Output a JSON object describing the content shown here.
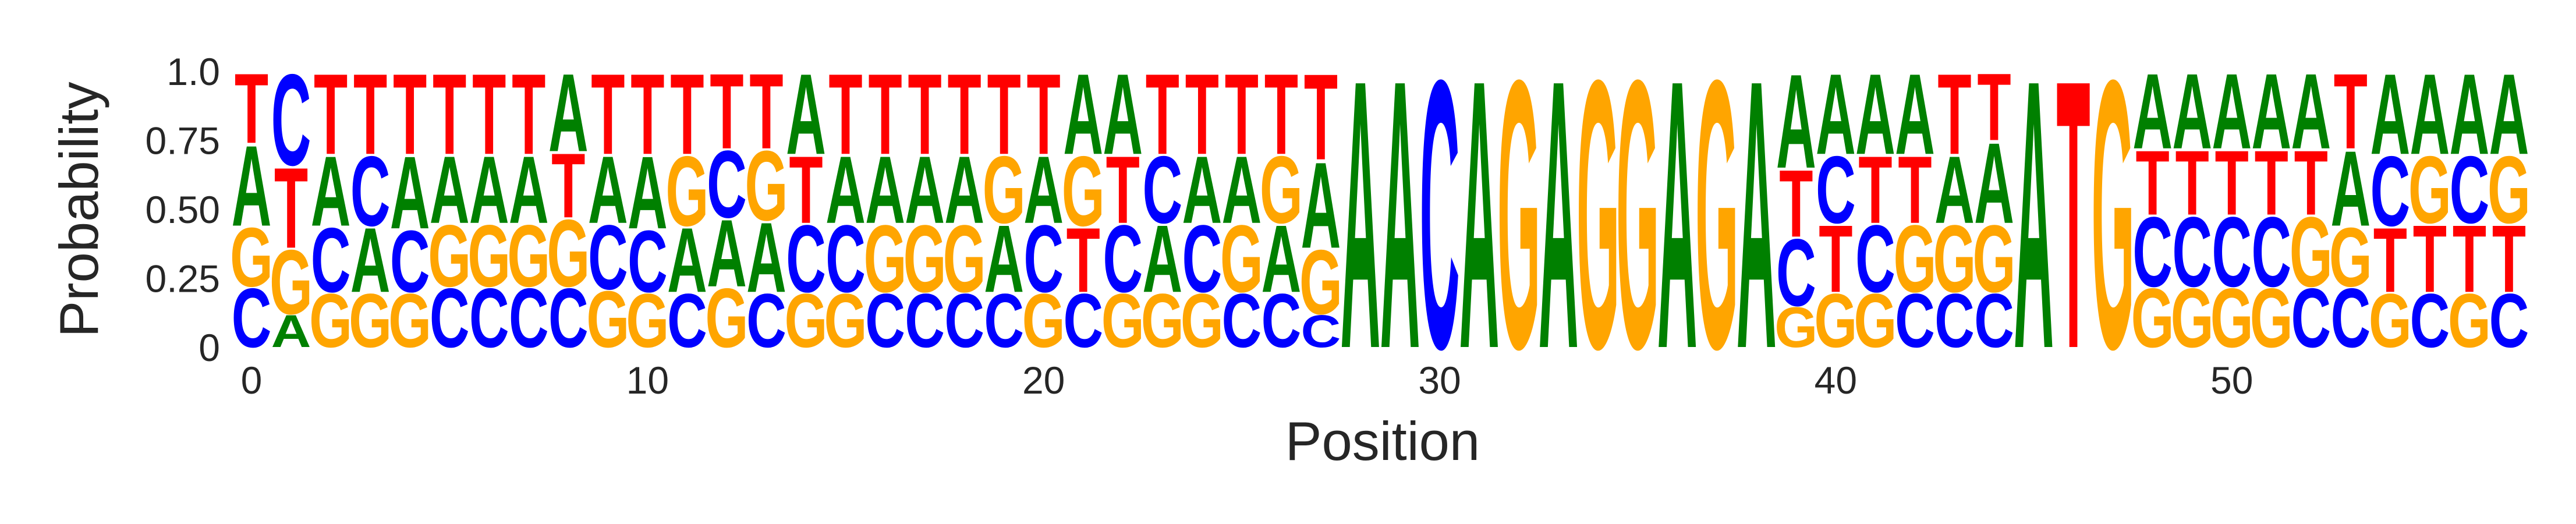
{
  "chart_data": {
    "type": "sequence-logo",
    "title": "",
    "xlabel": "Position",
    "ylabel": "Probability",
    "ylim": [
      0,
      1
    ],
    "yticks": [
      "0",
      "0.25",
      "0.50",
      "0.75",
      "1.0"
    ],
    "yticks_values": [
      0,
      0.25,
      0.5,
      0.75,
      1.0
    ],
    "xticks": [
      "0",
      "10",
      "20",
      "30",
      "40",
      "50"
    ],
    "xticks_values": [
      0,
      10,
      20,
      30,
      40,
      50
    ],
    "xlim": [
      -0.5,
      58.5
    ],
    "grid": false,
    "legend": "none",
    "letter_colors": {
      "A": "#008000",
      "C": "#0000ff",
      "G": "#ffa500",
      "T": "#ff0000"
    },
    "positions": [
      {
        "pos": 0,
        "probs": {
          "C": 0.22,
          "G": 0.22,
          "A": 0.3,
          "T": 0.26
        }
      },
      {
        "pos": 1,
        "probs": {
          "A": 0.12,
          "G": 0.24,
          "T": 0.3,
          "C": 0.34
        }
      },
      {
        "pos": 2,
        "probs": {
          "G": 0.2,
          "C": 0.24,
          "A": 0.26,
          "T": 0.3
        }
      },
      {
        "pos": 3,
        "probs": {
          "G": 0.2,
          "A": 0.24,
          "C": 0.26,
          "T": 0.3
        }
      },
      {
        "pos": 4,
        "probs": {
          "G": 0.2,
          "C": 0.23,
          "A": 0.27,
          "T": 0.3
        }
      },
      {
        "pos": 5,
        "probs": {
          "C": 0.22,
          "G": 0.23,
          "A": 0.25,
          "T": 0.3
        }
      },
      {
        "pos": 6,
        "probs": {
          "C": 0.22,
          "G": 0.23,
          "A": 0.25,
          "T": 0.3
        }
      },
      {
        "pos": 7,
        "probs": {
          "C": 0.22,
          "G": 0.23,
          "A": 0.25,
          "T": 0.3
        }
      },
      {
        "pos": 8,
        "probs": {
          "C": 0.22,
          "C2": 0,
          "G": 0.25,
          "T": 0.24,
          "A": 0.29
        }
      },
      {
        "pos": 9,
        "probs": {
          "G": 0.21,
          "C": 0.24,
          "A": 0.25,
          "T": 0.3
        }
      },
      {
        "pos": 10,
        "probs": {
          "G": 0.2,
          "C": 0.23,
          "A": 0.27,
          "T": 0.3
        }
      },
      {
        "pos": 11,
        "probs": {
          "C": 0.2,
          "A": 0.24,
          "G": 0.26,
          "T": 0.3
        }
      },
      {
        "pos": 12,
        "probs": {
          "G": 0.22,
          "A": 0.25,
          "C": 0.25,
          "T": 0.28
        }
      },
      {
        "pos": 13,
        "probs": {
          "C": 0.2,
          "A": 0.26,
          "G": 0.26,
          "T": 0.28
        }
      },
      {
        "pos": 14,
        "probs": {
          "G": 0.2,
          "C": 0.25,
          "T": 0.25,
          "A": 0.3
        }
      },
      {
        "pos": 15,
        "probs": {
          "G": 0.2,
          "C": 0.25,
          "A": 0.25,
          "T": 0.3
        }
      },
      {
        "pos": 16,
        "probs": {
          "C": 0.2,
          "G": 0.25,
          "A": 0.25,
          "T": 0.3
        }
      },
      {
        "pos": 17,
        "probs": {
          "C": 0.2,
          "G": 0.25,
          "A": 0.25,
          "T": 0.3
        }
      },
      {
        "pos": 18,
        "probs": {
          "C": 0.2,
          "G": 0.25,
          "A": 0.25,
          "T": 0.3
        }
      },
      {
        "pos": 19,
        "probs": {
          "C": 0.2,
          "A": 0.25,
          "G": 0.25,
          "T": 0.3
        }
      },
      {
        "pos": 20,
        "probs": {
          "G": 0.2,
          "C": 0.25,
          "A": 0.25,
          "T": 0.3
        }
      },
      {
        "pos": 21,
        "probs": {
          "C": 0.2,
          "T": 0.24,
          "G": 0.26,
          "A": 0.3
        }
      },
      {
        "pos": 22,
        "probs": {
          "G": 0.2,
          "C": 0.25,
          "T": 0.25,
          "A": 0.3
        }
      },
      {
        "pos": 23,
        "probs": {
          "G": 0.2,
          "A": 0.25,
          "C": 0.25,
          "T": 0.3
        }
      },
      {
        "pos": 24,
        "probs": {
          "G": 0.2,
          "C": 0.25,
          "A": 0.25,
          "T": 0.3
        }
      },
      {
        "pos": 25,
        "probs": {
          "C": 0.2,
          "G": 0.25,
          "A": 0.25,
          "T": 0.3
        }
      },
      {
        "pos": 26,
        "probs": {
          "C": 0.2,
          "A": 0.25,
          "G": 0.25,
          "T": 0.3
        }
      },
      {
        "pos": 27,
        "probs": {
          "C": 0.12,
          "G": 0.24,
          "A": 0.32,
          "T": 0.32
        }
      },
      {
        "pos": 28,
        "probs": {
          "A": 1.0
        }
      },
      {
        "pos": 29,
        "probs": {
          "A": 1.0
        }
      },
      {
        "pos": 30,
        "probs": {
          "C": 1.0
        }
      },
      {
        "pos": 31,
        "probs": {
          "A": 1.0
        }
      },
      {
        "pos": 32,
        "probs": {
          "G": 1.0
        }
      },
      {
        "pos": 33,
        "probs": {
          "A": 1.0
        }
      },
      {
        "pos": 34,
        "probs": {
          "G": 1.0
        }
      },
      {
        "pos": 35,
        "probs": {
          "G": 1.0
        }
      },
      {
        "pos": 36,
        "probs": {
          "A": 1.0
        }
      },
      {
        "pos": 37,
        "probs": {
          "G": 1.0
        }
      },
      {
        "pos": 38,
        "probs": {
          "A": 1.0
        }
      },
      {
        "pos": 39,
        "probs": {
          "G": 0.15,
          "C": 0.25,
          "T": 0.25,
          "A": 0.35
        }
      },
      {
        "pos": 40,
        "probs": {
          "G": 0.2,
          "T": 0.25,
          "C": 0.25,
          "A": 0.3
        }
      },
      {
        "pos": 41,
        "probs": {
          "G": 0.2,
          "C": 0.25,
          "T": 0.25,
          "A": 0.3
        }
      },
      {
        "pos": 42,
        "probs": {
          "C": 0.2,
          "G": 0.25,
          "T": 0.25,
          "A": 0.3
        }
      },
      {
        "pos": 43,
        "probs": {
          "C": 0.2,
          "G": 0.25,
          "A": 0.25,
          "T": 0.3
        }
      },
      {
        "pos": 44,
        "probs": {
          "C": 0.2,
          "G": 0.25,
          "A": 0.3,
          "T": 0.25
        }
      },
      {
        "pos": 45,
        "probs": {
          "A": 1.0
        }
      },
      {
        "pos": 46,
        "probs": {
          "T": 1.0
        }
      },
      {
        "pos": 47,
        "probs": {
          "G": 1.0
        }
      },
      {
        "pos": 48,
        "probs": {
          "G": 0.22,
          "C": 0.26,
          "T": 0.24,
          "A": 0.28
        }
      },
      {
        "pos": 49,
        "probs": {
          "G": 0.22,
          "C": 0.26,
          "T": 0.24,
          "A": 0.28
        }
      },
      {
        "pos": 50,
        "probs": {
          "G": 0.22,
          "C": 0.26,
          "T": 0.24,
          "A": 0.28
        }
      },
      {
        "pos": 51,
        "probs": {
          "G": 0.22,
          "C": 0.26,
          "T": 0.24,
          "A": 0.28
        }
      },
      {
        "pos": 52,
        "probs": {
          "C": 0.22,
          "G": 0.26,
          "T": 0.24,
          "A": 0.28
        }
      },
      {
        "pos": 53,
        "probs": {
          "C": 0.22,
          "G": 0.22,
          "A": 0.28,
          "T": 0.28
        }
      },
      {
        "pos": 54,
        "probs": {
          "G": 0.2,
          "T": 0.24,
          "C": 0.26,
          "A": 0.3
        }
      },
      {
        "pos": 55,
        "probs": {
          "C": 0.2,
          "T": 0.25,
          "G": 0.25,
          "A": 0.3
        }
      },
      {
        "pos": 56,
        "probs": {
          "G": 0.2,
          "T": 0.25,
          "C": 0.25,
          "A": 0.3
        }
      },
      {
        "pos": 57,
        "probs": {
          "C": 0.2,
          "T": 0.25,
          "G": 0.25,
          "A": 0.3
        }
      }
    ]
  }
}
